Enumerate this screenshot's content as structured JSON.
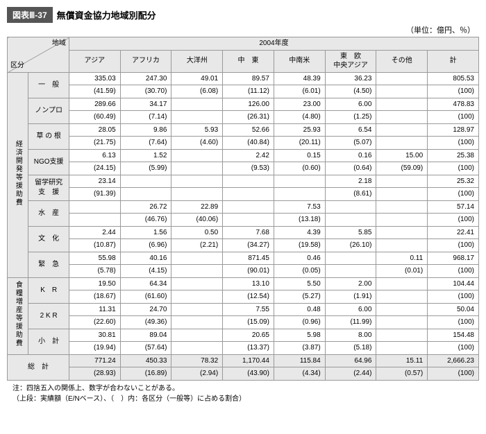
{
  "header": {
    "tag": "図表Ⅲ-37",
    "title": "無償資金協力地域別配分",
    "unit": "（単位：億円、％）"
  },
  "axis": {
    "top": "地域",
    "left": "区分",
    "year": "2004年度"
  },
  "cols": [
    "アジア",
    "アフリカ",
    "大洋州",
    "中　東",
    "中南米",
    "東　欧\n中央アジア",
    "その他",
    "計"
  ],
  "groups": [
    {
      "label": "経済開発等援助費",
      "rows": [
        {
          "label": "一　般",
          "v": [
            "335.03",
            "247.30",
            "49.01",
            "89.57",
            "48.39",
            "36.23",
            "",
            "805.53"
          ],
          "p": [
            "(41.59)",
            "(30.70)",
            "(6.08)",
            "(11.12)",
            "(6.01)",
            "(4.50)",
            "",
            "(100)"
          ]
        },
        {
          "label": "ノンプロ",
          "v": [
            "289.66",
            "34.17",
            "",
            "126.00",
            "23.00",
            "6.00",
            "",
            "478.83"
          ],
          "p": [
            "(60.49)",
            "(7.14)",
            "",
            "(26.31)",
            "(4.80)",
            "(1.25)",
            "",
            "(100)"
          ]
        },
        {
          "label": "草 の 根",
          "v": [
            "28.05",
            "9.86",
            "5.93",
            "52.66",
            "25.93",
            "6.54",
            "",
            "128.97"
          ],
          "p": [
            "(21.75)",
            "(7.64)",
            "(4.60)",
            "(40.84)",
            "(20.11)",
            "(5.07)",
            "",
            "(100)"
          ]
        },
        {
          "label": "NGO支援",
          "v": [
            "6.13",
            "1.52",
            "",
            "2.42",
            "0.15",
            "0.16",
            "15.00",
            "25.38"
          ],
          "p": [
            "(24.15)",
            "(5.99)",
            "",
            "(9.53)",
            "(0.60)",
            "(0.64)",
            "(59.09)",
            "(100)"
          ]
        },
        {
          "label": "留学研究\n支　援",
          "v": [
            "23.14",
            "",
            "",
            "",
            "",
            "2.18",
            "",
            "25.32"
          ],
          "p": [
            "(91.39)",
            "",
            "",
            "",
            "",
            "(8.61)",
            "",
            "(100)"
          ]
        },
        {
          "label": "水　産",
          "v": [
            "",
            "26.72",
            "22.89",
            "",
            "7.53",
            "",
            "",
            "57.14"
          ],
          "p": [
            "",
            "(46.76)",
            "(40.06)",
            "",
            "(13.18)",
            "",
            "",
            "(100)"
          ]
        },
        {
          "label": "文　化",
          "v": [
            "2.44",
            "1.56",
            "0.50",
            "7.68",
            "4.39",
            "5.85",
            "",
            "22.41"
          ],
          "p": [
            "(10.87)",
            "(6.96)",
            "(2.21)",
            "(34.27)",
            "(19.58)",
            "(26.10)",
            "",
            "(100)"
          ]
        },
        {
          "label": "緊　急",
          "v": [
            "55.98",
            "40.16",
            "",
            "871.45",
            "0.46",
            "",
            "0.11",
            "968.17"
          ],
          "p": [
            "(5.78)",
            "(4.15)",
            "",
            "(90.01)",
            "(0.05)",
            "",
            "(0.01)",
            "(100)"
          ]
        }
      ]
    },
    {
      "label": "食糧増産等援助費",
      "rows": [
        {
          "label": "K　R",
          "v": [
            "19.50",
            "64.34",
            "",
            "13.10",
            "5.50",
            "2.00",
            "",
            "104.44"
          ],
          "p": [
            "(18.67)",
            "(61.60)",
            "",
            "(12.54)",
            "(5.27)",
            "(1.91)",
            "",
            "(100)"
          ]
        },
        {
          "label": "2 K R",
          "v": [
            "11.31",
            "24.70",
            "",
            "7.55",
            "0.48",
            "6.00",
            "",
            "50.04"
          ],
          "p": [
            "(22.60)",
            "(49.36)",
            "",
            "(15.09)",
            "(0.96)",
            "(11.99)",
            "",
            "(100)"
          ]
        },
        {
          "label": "小　計",
          "v": [
            "30.81",
            "89.04",
            "",
            "20.65",
            "5.98",
            "8.00",
            "",
            "154.48"
          ],
          "p": [
            "(19.94)",
            "(57.64)",
            "",
            "(13.37)",
            "(3.87)",
            "(5.18)",
            "",
            "(100)"
          ]
        }
      ]
    }
  ],
  "total": {
    "label": "総　計",
    "v": [
      "771.24",
      "450.33",
      "78.32",
      "1,170.44",
      "115.84",
      "64.96",
      "15.11",
      "2,666.23"
    ],
    "p": [
      "(28.93)",
      "(16.89)",
      "(2.94)",
      "(43.90)",
      "(4.34)",
      "(2.44)",
      "(0.57)",
      "(100)"
    ]
  },
  "notes": [
    "注：四捨五入の関係上、数字が合わないことがある。",
    "（上段：実績額（E/Nベース）、（　）内：各区分（一般等）に占める割合）"
  ]
}
